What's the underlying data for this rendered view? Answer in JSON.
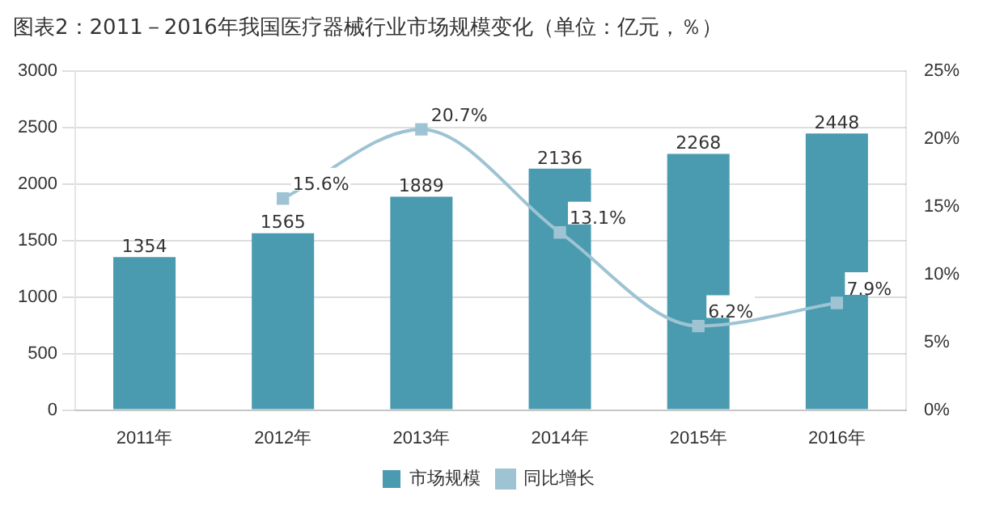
{
  "chart_data": {
    "type": "bar",
    "title": "图表2：2011－2016年我国医疗器械行业市场规模变化（单位：亿元，％）",
    "categories": [
      "2011年",
      "2012年",
      "2013年",
      "2014年",
      "2015年",
      "2016年"
    ],
    "series": [
      {
        "name": "市场规模",
        "color": "#4a9bb0",
        "values": [
          1354,
          1565,
          1889,
          2136,
          2268,
          2448
        ],
        "value_labels": [
          "1354",
          "1565",
          "1889",
          "2136",
          "2268",
          "2448"
        ]
      },
      {
        "name": "同比增长",
        "type": "line",
        "axis": "y2",
        "color": "#9ec3d3",
        "marker": "square",
        "values": [
          null,
          15.6,
          20.7,
          13.1,
          6.2,
          7.9
        ],
        "value_labels": [
          null,
          "15.6%",
          "20.7%",
          "13.1%",
          "6.2%",
          "7.9%"
        ]
      }
    ],
    "ylim": [
      0,
      3000
    ],
    "yticks": [
      0,
      500,
      1000,
      1500,
      2000,
      2500,
      3000
    ],
    "y2lim": [
      0,
      25
    ],
    "y2ticks": [
      {
        "value": 0,
        "label": "0%"
      },
      {
        "value": 5,
        "label": "5%"
      },
      {
        "value": 10,
        "label": "10%"
      },
      {
        "value": 15,
        "label": "15%"
      },
      {
        "value": 20,
        "label": "20%"
      },
      {
        "value": 25,
        "label": "25%"
      }
    ],
    "grid": "y",
    "legend": "bottom"
  }
}
